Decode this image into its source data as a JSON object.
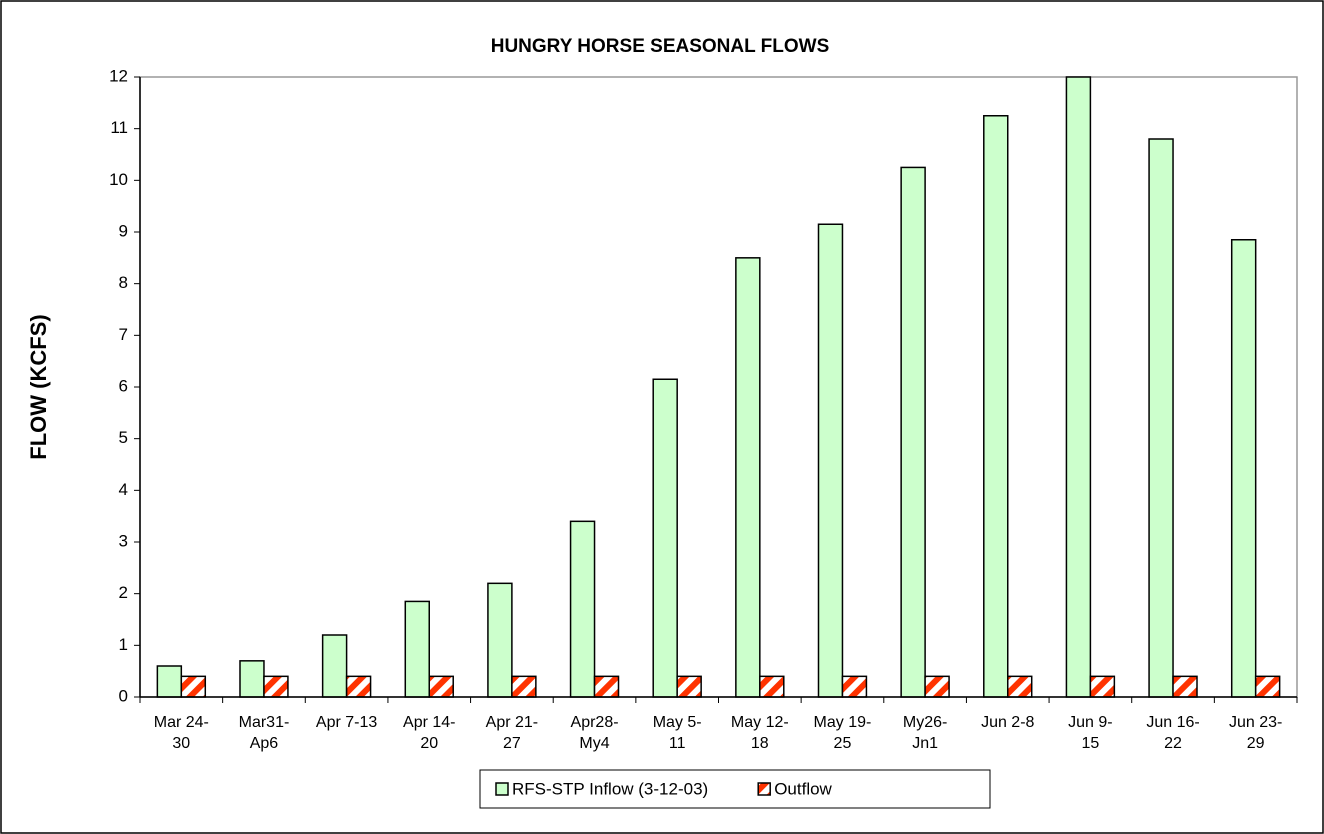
{
  "chart_data": {
    "type": "bar",
    "title": "HUNGRY HORSE SEASONAL FLOWS",
    "y_label": "FLOW (KCFS)",
    "categories": [
      "Mar 24-\n30",
      "Mar31-\nAp6",
      "Apr 7-13",
      "Apr 14-\n20",
      "Apr 21-\n27",
      "Apr28-\nMy4",
      "May 5-\n11",
      "May 12-\n18",
      "May 19-\n25",
      "My26-\nJn1",
      "Jun 2-8",
      "Jun 9-\n15",
      "Jun 16-\n22",
      "Jun 23-\n29"
    ],
    "series": [
      {
        "name": "RFS-STP Inflow (3-12-03)",
        "color": "#ccffcc",
        "values": [
          0.6,
          0.7,
          1.2,
          1.85,
          2.2,
          3.4,
          6.15,
          8.5,
          9.15,
          10.25,
          11.25,
          12.0,
          10.8,
          8.85
        ]
      },
      {
        "name": "Outflow",
        "color": "#ff3300",
        "pattern": "diagonal-stripes",
        "values": [
          0.4,
          0.4,
          0.4,
          0.4,
          0.4,
          0.4,
          0.4,
          0.4,
          0.4,
          0.4,
          0.4,
          0.4,
          0.4,
          0.4
        ]
      }
    ],
    "ylim": [
      0,
      12
    ],
    "yticks": [
      0,
      1,
      2,
      3,
      4,
      5,
      6,
      7,
      8,
      9,
      10,
      11,
      12
    ],
    "grid": false,
    "legend": "bottom"
  }
}
